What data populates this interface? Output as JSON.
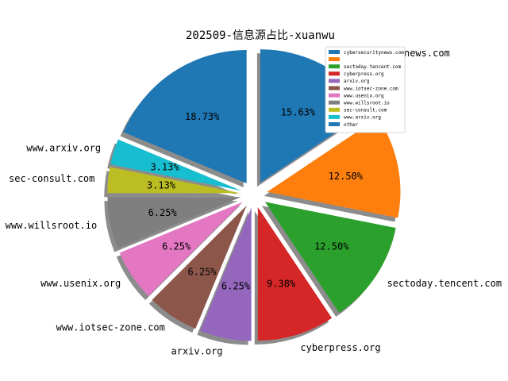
{
  "chart_data": {
    "type": "pie",
    "title": "202509-信息源占比-xuanwu",
    "slices": [
      {
        "label": "cybersecuritynews.com",
        "value": 15.63,
        "pct": "15.63%",
        "color": "#1f77b4"
      },
      {
        "label": "",
        "value": 12.5,
        "pct": "12.50%",
        "color": "#ff7f0e"
      },
      {
        "label": "sectoday.tencent.com",
        "value": 12.5,
        "pct": "12.50%",
        "color": "#2ca02c"
      },
      {
        "label": "cyberpress.org",
        "value": 9.38,
        "pct": "9.38%",
        "color": "#d62728"
      },
      {
        "label": "arxiv.org",
        "value": 6.25,
        "pct": "6.25%",
        "color": "#9467bd"
      },
      {
        "label": "www.iotsec-zone.com",
        "value": 6.25,
        "pct": "6.25%",
        "color": "#8c564b"
      },
      {
        "label": "www.usenix.org",
        "value": 6.25,
        "pct": "6.25%",
        "color": "#e377c2"
      },
      {
        "label": "www.willsroot.io",
        "value": 6.25,
        "pct": "6.25%",
        "color": "#7f7f7f"
      },
      {
        "label": "sec-consult.com",
        "value": 3.13,
        "pct": "3.13%",
        "color": "#bcbd22"
      },
      {
        "label": "www.arxiv.org",
        "value": 3.13,
        "pct": "3.13%",
        "color": "#17becf"
      },
      {
        "label": "",
        "value": 18.73,
        "pct": "18.73%",
        "color": "#1f77b4"
      }
    ],
    "legend": {
      "placement": "top-right",
      "entries": [
        {
          "label": "cybersecuritynews.com",
          "color": "#1f77b4"
        },
        {
          "label": "",
          "color": "#ff7f0e"
        },
        {
          "label": "sectoday.tencent.com",
          "color": "#2ca02c"
        },
        {
          "label": "cyberpress.org",
          "color": "#d62728"
        },
        {
          "label": "arxiv.org",
          "color": "#9467bd"
        },
        {
          "label": "www.iotsec-zone.com",
          "color": "#8c564b"
        },
        {
          "label": "www.usenix.org",
          "color": "#e377c2"
        },
        {
          "label": "www.willsroot.io",
          "color": "#7f7f7f"
        },
        {
          "label": "sec-consult.com",
          "color": "#bcbd22"
        },
        {
          "label": "www.arxiv.org",
          "color": "#17becf"
        },
        {
          "label": "other",
          "color": "#1f77b4"
        }
      ]
    }
  }
}
